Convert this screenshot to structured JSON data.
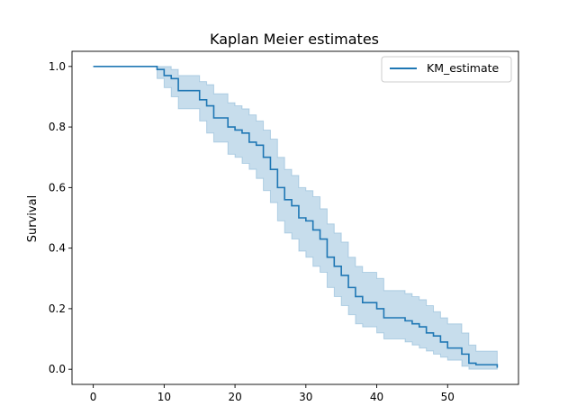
{
  "chart_data": {
    "type": "line",
    "step": "post",
    "title": "Kaplan Meier estimates",
    "xlabel": "",
    "ylabel": "Survival",
    "xlim": [
      -3,
      60
    ],
    "ylim": [
      -0.05,
      1.05
    ],
    "xticks": [
      0,
      10,
      20,
      30,
      40,
      50
    ],
    "yticks": [
      0.0,
      0.2,
      0.4,
      0.6,
      0.8,
      1.0
    ],
    "xtick_labels": [
      "0",
      "10",
      "20",
      "30",
      "40",
      "50"
    ],
    "ytick_labels": [
      "0.0",
      "0.2",
      "0.4",
      "0.6",
      "0.8",
      "1.0"
    ],
    "grid": false,
    "legend_position": "top-right",
    "colors": {
      "line": "#1f77b4",
      "band": "#1f77b4"
    },
    "series": [
      {
        "name": "KM_estimate",
        "x": [
          0,
          9,
          10,
          11,
          12,
          15,
          16,
          17,
          19,
          20,
          21,
          22,
          23,
          24,
          25,
          26,
          27,
          28,
          29,
          30,
          31,
          32,
          33,
          34,
          35,
          36,
          37,
          38,
          40,
          41,
          44,
          45,
          46,
          47,
          48,
          49,
          50,
          52,
          53,
          54,
          57
        ],
        "y": [
          1.0,
          0.99,
          0.97,
          0.96,
          0.92,
          0.89,
          0.87,
          0.83,
          0.8,
          0.79,
          0.78,
          0.75,
          0.74,
          0.7,
          0.66,
          0.6,
          0.56,
          0.54,
          0.5,
          0.49,
          0.46,
          0.43,
          0.37,
          0.34,
          0.31,
          0.27,
          0.24,
          0.22,
          0.2,
          0.17,
          0.16,
          0.15,
          0.14,
          0.12,
          0.11,
          0.09,
          0.07,
          0.05,
          0.02,
          0.015,
          0.005
        ],
        "ci_lower": [
          1.0,
          0.96,
          0.93,
          0.9,
          0.86,
          0.82,
          0.78,
          0.75,
          0.71,
          0.7,
          0.68,
          0.66,
          0.63,
          0.59,
          0.55,
          0.49,
          0.45,
          0.43,
          0.39,
          0.37,
          0.34,
          0.32,
          0.27,
          0.24,
          0.21,
          0.18,
          0.15,
          0.14,
          0.12,
          0.1,
          0.09,
          0.08,
          0.07,
          0.06,
          0.05,
          0.04,
          0.03,
          0.01,
          0.0,
          0.0,
          0.0
        ],
        "ci_upper": [
          1.0,
          1.0,
          1.0,
          0.99,
          0.97,
          0.95,
          0.94,
          0.91,
          0.88,
          0.87,
          0.86,
          0.84,
          0.82,
          0.79,
          0.76,
          0.7,
          0.66,
          0.64,
          0.6,
          0.59,
          0.57,
          0.53,
          0.48,
          0.45,
          0.42,
          0.37,
          0.34,
          0.32,
          0.3,
          0.26,
          0.25,
          0.24,
          0.23,
          0.21,
          0.19,
          0.17,
          0.15,
          0.12,
          0.08,
          0.06,
          0.06
        ]
      }
    ]
  }
}
